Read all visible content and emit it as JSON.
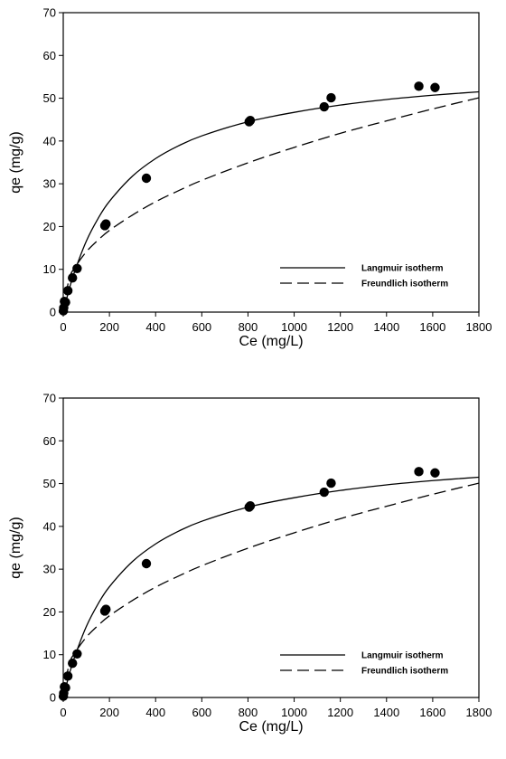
{
  "chart_data": [
    {
      "type": "scatter",
      "xlabel": "Ce (mg/L)",
      "ylabel": "qe (mg/g)",
      "xlim": [
        0,
        1800
      ],
      "ylim": [
        0,
        70
      ],
      "xticks": [
        0,
        200,
        400,
        600,
        800,
        1000,
        1200,
        1400,
        1600,
        1800
      ],
      "yticks": [
        0,
        10,
        20,
        30,
        40,
        50,
        60,
        70
      ],
      "grid": false,
      "legend_position": "bottom-right",
      "series": [
        {
          "kind": "points",
          "color": "#000000",
          "x": [
            0.5,
            2,
            5,
            10,
            20,
            40,
            60,
            180,
            185,
            360,
            805,
            810,
            1130,
            1160,
            1540,
            1610
          ],
          "y": [
            0.3,
            1,
            2.5,
            2.3,
            5,
            8,
            10.2,
            20.2,
            20.6,
            31.3,
            44.5,
            44.8,
            48.0,
            50.1,
            52.8,
            52.5
          ]
        },
        {
          "name": "Langmuir isotherm",
          "kind": "line",
          "style": "solid",
          "color": "#000000",
          "x": [
            0,
            25,
            50,
            100,
            150,
            200,
            300,
            400,
            500,
            600,
            800,
            1000,
            1200,
            1400,
            1600,
            1800
          ],
          "y": [
            0,
            5.2,
            9.6,
            16.6,
            21.8,
            25.9,
            31.8,
            35.9,
            38.9,
            41.2,
            44.5,
            46.7,
            48.4,
            49.7,
            50.7,
            51.5
          ]
        },
        {
          "name": "Freundlich isotherm",
          "kind": "line",
          "style": "dashed",
          "color": "#000000",
          "x": [
            0,
            25,
            50,
            100,
            150,
            200,
            300,
            400,
            500,
            600,
            800,
            1000,
            1200,
            1400,
            1600,
            1800
          ],
          "y": [
            0,
            7.7,
            10.4,
            14.1,
            16.8,
            19.1,
            22.7,
            25.8,
            28.4,
            30.8,
            34.9,
            38.5,
            41.8,
            44.7,
            47.5,
            50.1
          ]
        }
      ]
    },
    {
      "type": "scatter",
      "xlabel": "Ce (mg/L)",
      "ylabel": "qe (mg/g)",
      "xlim": [
        0,
        1800
      ],
      "ylim": [
        0,
        70
      ],
      "xticks": [
        0,
        200,
        400,
        600,
        800,
        1000,
        1200,
        1400,
        1600,
        1800
      ],
      "yticks": [
        0,
        10,
        20,
        30,
        40,
        50,
        60,
        70
      ],
      "grid": false,
      "legend_position": "bottom-right",
      "series": [
        {
          "kind": "points",
          "color": "#000000",
          "x": [
            0.5,
            2,
            5,
            10,
            20,
            40,
            60,
            180,
            185,
            360,
            805,
            810,
            1130,
            1160,
            1540,
            1610
          ],
          "y": [
            0.3,
            1,
            2.5,
            2.3,
            5,
            8,
            10.2,
            20.2,
            20.6,
            31.3,
            44.5,
            44.8,
            48.0,
            50.1,
            52.8,
            52.5
          ]
        },
        {
          "name": "Langmuir isotherm",
          "kind": "line",
          "style": "solid",
          "color": "#000000",
          "x": [
            0,
            25,
            50,
            100,
            150,
            200,
            300,
            400,
            500,
            600,
            800,
            1000,
            1200,
            1400,
            1600,
            1800
          ],
          "y": [
            0,
            5.2,
            9.6,
            16.6,
            21.8,
            25.9,
            31.8,
            35.9,
            38.9,
            41.2,
            44.5,
            46.7,
            48.4,
            49.7,
            50.7,
            51.5
          ]
        },
        {
          "name": "Freundlich isotherm",
          "kind": "line",
          "style": "dashed",
          "color": "#000000",
          "x": [
            0,
            25,
            50,
            100,
            150,
            200,
            300,
            400,
            500,
            600,
            800,
            1000,
            1200,
            1400,
            1600,
            1800
          ],
          "y": [
            0,
            7.7,
            10.4,
            14.1,
            16.8,
            19.1,
            22.7,
            25.8,
            28.4,
            30.8,
            34.9,
            38.5,
            41.8,
            44.7,
            47.5,
            50.1
          ]
        }
      ]
    }
  ]
}
